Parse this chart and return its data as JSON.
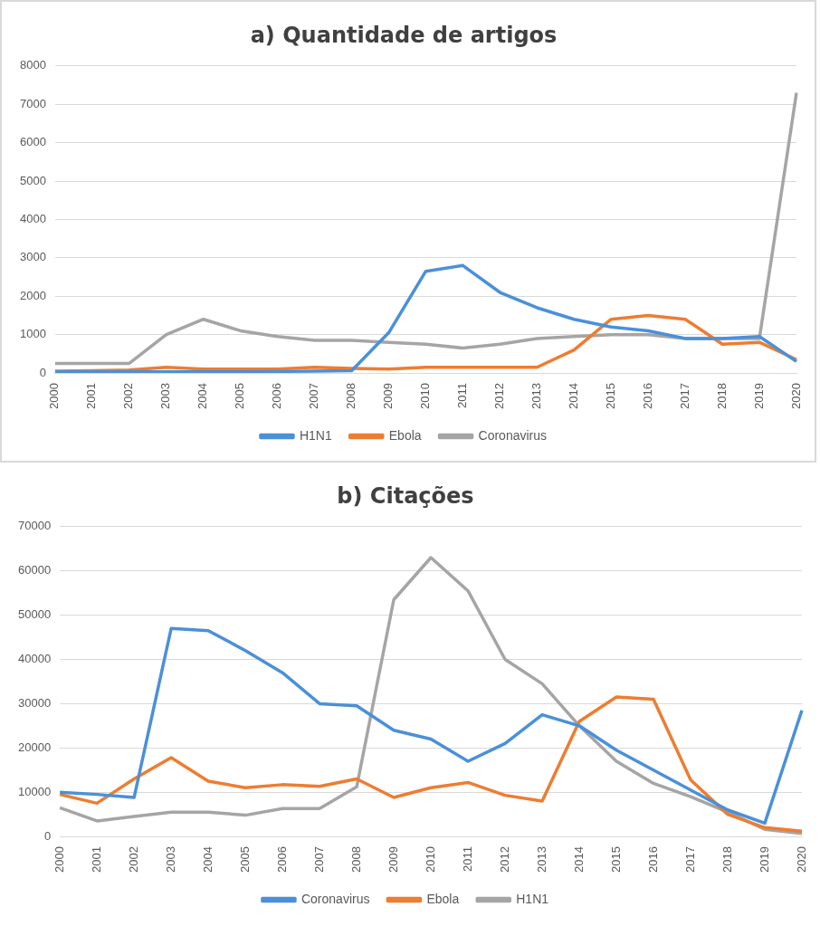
{
  "chart_data": [
    {
      "type": "line",
      "title": "a) Quantidade de artigos",
      "categories": [
        "2000",
        "2001",
        "2002",
        "2003",
        "2004",
        "2005",
        "2006",
        "2007",
        "2008",
        "2009",
        "2010",
        "2011",
        "2012",
        "2013",
        "2014",
        "2015",
        "2016",
        "2017",
        "2018",
        "2019",
        "2020"
      ],
      "series": [
        {
          "name": "H1N1",
          "color": "#4a90d9",
          "values": [
            30,
            30,
            30,
            30,
            30,
            30,
            40,
            50,
            60,
            1050,
            2650,
            2800,
            2100,
            1700,
            1400,
            1200,
            1100,
            900,
            900,
            950,
            300
          ]
        },
        {
          "name": "Ebola",
          "color": "#ed7d31",
          "values": [
            50,
            60,
            80,
            150,
            100,
            100,
            100,
            150,
            120,
            100,
            150,
            150,
            150,
            150,
            600,
            1400,
            1500,
            1400,
            750,
            800,
            350
          ]
        },
        {
          "name": "Coronavirus",
          "color": "#a5a5a5",
          "values": [
            250,
            250,
            250,
            1000,
            1400,
            1100,
            950,
            850,
            850,
            800,
            750,
            650,
            750,
            900,
            950,
            1000,
            1000,
            900,
            900,
            900,
            7300
          ]
        }
      ],
      "ylim": [
        0,
        8000
      ],
      "yticks": [
        0,
        1000,
        2000,
        3000,
        4000,
        5000,
        6000,
        7000,
        8000
      ],
      "grid": "y",
      "legend": "bottom",
      "marker": "none"
    },
    {
      "type": "line",
      "title": "b) Citações",
      "categories": [
        "2000",
        "2001",
        "2002",
        "2003",
        "2004",
        "2005",
        "2006",
        "2007",
        "2008",
        "2009",
        "2010",
        "2011",
        "2012",
        "2013",
        "2014",
        "2015",
        "2016",
        "2017",
        "2018",
        "2019",
        "2020"
      ],
      "series": [
        {
          "name": "Coronavirus",
          "color": "#4a90d9",
          "values": [
            10000,
            9500,
            8800,
            47000,
            46500,
            42000,
            37000,
            30000,
            29500,
            24000,
            22000,
            17000,
            21000,
            27500,
            25000,
            19500,
            15000,
            10500,
            6000,
            3000,
            28500
          ]
        },
        {
          "name": "Ebola",
          "color": "#ed7d31",
          "values": [
            9500,
            7500,
            13000,
            17800,
            12500,
            11000,
            11700,
            11300,
            13000,
            8800,
            11000,
            12200,
            9300,
            8000,
            26000,
            31500,
            31000,
            12800,
            5000,
            2000,
            1200
          ]
        },
        {
          "name": "H1N1",
          "color": "#a5a5a5",
          "values": [
            6500,
            3500,
            4500,
            5500,
            5500,
            4800,
            6300,
            6300,
            11200,
            53500,
            63000,
            55500,
            40000,
            34500,
            25000,
            17000,
            12000,
            9000,
            5500,
            1600,
            700
          ]
        }
      ],
      "ylim": [
        0,
        70000
      ],
      "yticks": [
        0,
        10000,
        20000,
        30000,
        40000,
        50000,
        60000,
        70000
      ],
      "grid": "y",
      "legend": "bottom",
      "marker": "none"
    }
  ]
}
